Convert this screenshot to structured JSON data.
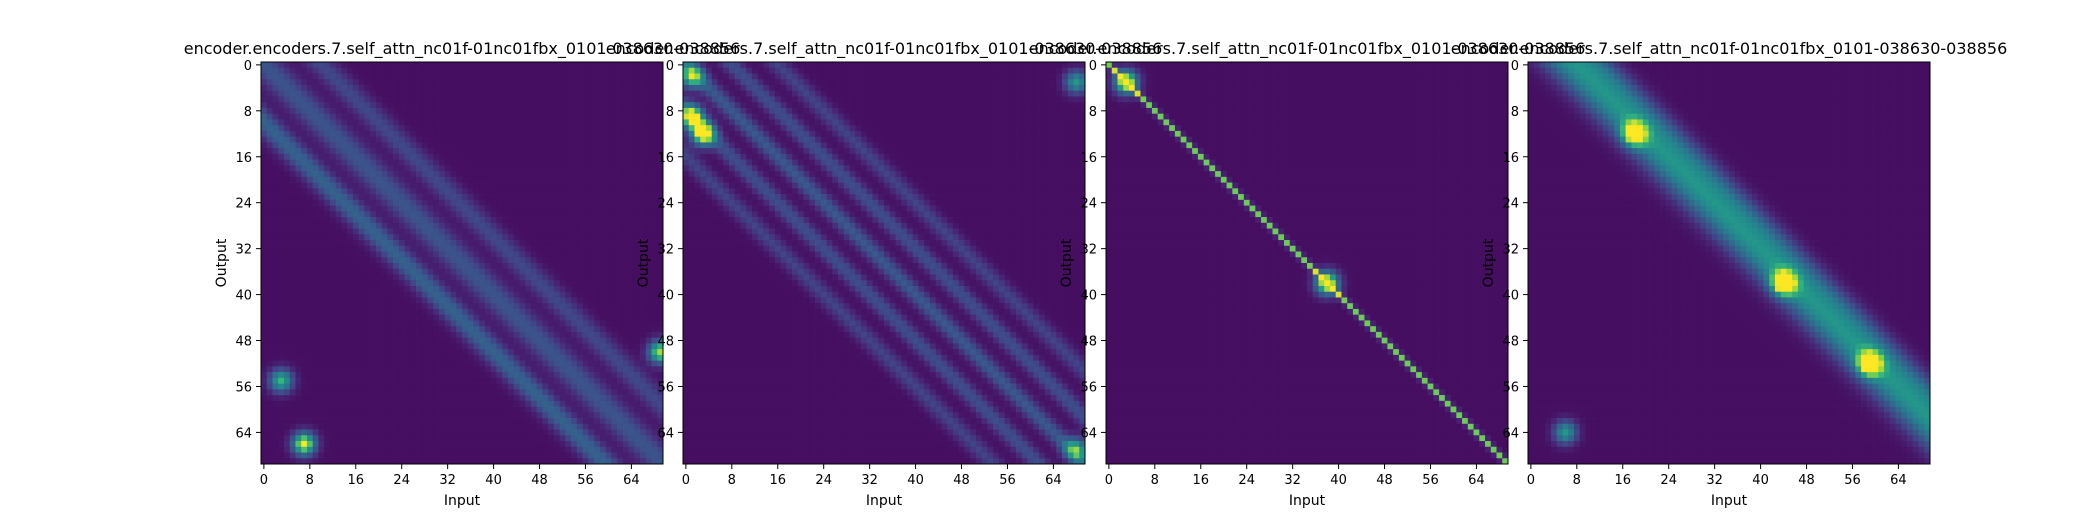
{
  "chart_data": [
    {
      "type": "heatmap",
      "title": "encoder.encoders.7.self_attn_nc01f-01nc01fbx_0101-038630-038856",
      "xlabel": "Input",
      "ylabel": "Output",
      "xticks": [
        0,
        8,
        16,
        24,
        32,
        40,
        48,
        56,
        64
      ],
      "yticks": [
        0,
        8,
        16,
        24,
        32,
        40,
        48,
        56,
        64
      ],
      "size": 70,
      "colormap": "viridis",
      "description_pattern": "wide-diagonal",
      "diagonals": [
        {
          "offset": -10,
          "width": 2.0,
          "strength": 0.35
        },
        {
          "offset": 0,
          "width": 2.5,
          "strength": 0.28
        },
        {
          "offset": 10,
          "width": 2.0,
          "strength": 0.22
        }
      ],
      "blobs": [
        {
          "row": 66,
          "col": 7,
          "strength": 0.95
        },
        {
          "row": 55,
          "col": 3,
          "strength": 0.7
        },
        {
          "row": 50,
          "col": 69,
          "strength": 0.85
        }
      ]
    },
    {
      "type": "heatmap",
      "title": "encoder.encoders.7.self_attn_nc01f-01nc01fbx_0101-038630-038856",
      "xlabel": "Input",
      "ylabel": "Output",
      "xticks": [
        0,
        8,
        16,
        24,
        32,
        40,
        48,
        56,
        64
      ],
      "yticks": [
        0,
        8,
        16,
        24,
        32,
        40,
        48,
        56,
        64
      ],
      "size": 70,
      "colormap": "viridis",
      "diagonals": [
        {
          "offset": 0,
          "width": 1.5,
          "strength": 0.3
        },
        {
          "offset": -8,
          "width": 1.5,
          "strength": 0.25
        },
        {
          "offset": 8,
          "width": 1.5,
          "strength": 0.25
        },
        {
          "offset": 16,
          "width": 1.5,
          "strength": 0.2
        },
        {
          "offset": -16,
          "width": 1.5,
          "strength": 0.2
        }
      ],
      "blobs": [
        {
          "row": 12,
          "col": 3,
          "strength": 1.0
        },
        {
          "row": 9,
          "col": 1,
          "strength": 0.9
        },
        {
          "row": 2,
          "col": 1,
          "strength": 0.7
        },
        {
          "row": 3,
          "col": 68,
          "strength": 0.6
        },
        {
          "row": 67,
          "col": 68,
          "strength": 0.6
        }
      ]
    },
    {
      "type": "heatmap",
      "title": "encoder.encoders.7.self_attn_nc01f-01nc01fbx_0101-038630-038856",
      "xlabel": "Input",
      "ylabel": "Output",
      "xticks": [
        0,
        8,
        16,
        24,
        32,
        40,
        48,
        56,
        64
      ],
      "yticks": [
        0,
        8,
        16,
        24,
        32,
        40,
        48,
        56,
        64
      ],
      "size": 70,
      "colormap": "viridis",
      "diagonals": [
        {
          "offset": 0,
          "width": 0.45,
          "strength": 0.78
        }
      ],
      "blobs": [
        {
          "row": 3,
          "col": 3,
          "strength": 1.0
        },
        {
          "row": 38,
          "col": 38,
          "strength": 1.0
        }
      ]
    },
    {
      "type": "heatmap",
      "title": "encoder.encoders.7.self_attn_nc01f-01nc01fbx_0101-038630-038856",
      "xlabel": "Input",
      "ylabel": "Output",
      "xticks": [
        0,
        8,
        16,
        24,
        32,
        40,
        48,
        56,
        64
      ],
      "yticks": [
        0,
        8,
        16,
        24,
        32,
        40,
        48,
        56,
        64
      ],
      "size": 70,
      "colormap": "viridis",
      "diagonals": [
        {
          "offset": 7,
          "width": 3.5,
          "strength": 0.55
        },
        {
          "offset": 12,
          "width": 2.5,
          "strength": 0.25
        }
      ],
      "blobs": [
        {
          "row": 12,
          "col": 18,
          "strength": 0.8
        },
        {
          "row": 38,
          "col": 44,
          "strength": 0.9
        },
        {
          "row": 52,
          "col": 59,
          "strength": 0.85
        },
        {
          "row": 64,
          "col": 6,
          "strength": 0.6
        }
      ]
    }
  ]
}
